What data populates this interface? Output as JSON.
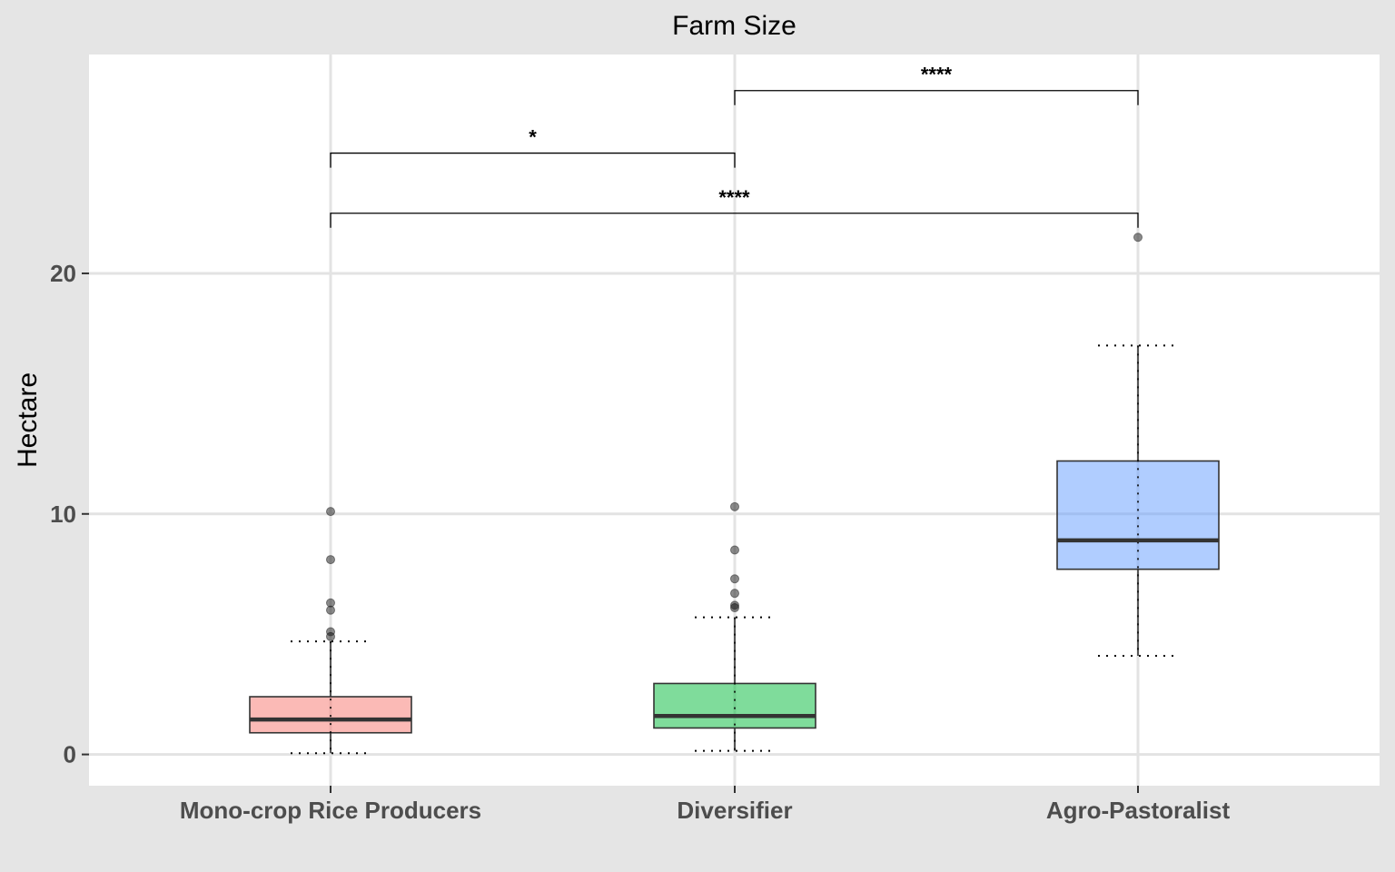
{
  "chart_data": {
    "type": "boxplot",
    "title": "Farm Size",
    "ylabel": "Hectare",
    "xlabel": "",
    "ylim": [
      -1.3,
      29.1
    ],
    "yticks": [
      0,
      10,
      20
    ],
    "categories": [
      "Mono-crop Rice Producers",
      "Diversifier",
      "Agro-Pastoralist"
    ],
    "boxes": [
      {
        "category": "Mono-crop Rice Producers",
        "min": 0.05,
        "q1": 0.9,
        "median": 1.45,
        "q3": 2.4,
        "max": 4.7,
        "outliers": [
          4.9,
          5.1,
          6.0,
          6.3,
          8.1,
          10.1
        ],
        "color": "#f8766d"
      },
      {
        "category": "Diversifier",
        "min": 0.15,
        "q1": 1.1,
        "median": 1.6,
        "q3": 2.95,
        "max": 5.7,
        "outliers": [
          6.1,
          6.2,
          6.7,
          7.3,
          8.5,
          10.3
        ],
        "color": "#00ba38"
      },
      {
        "category": "Agro-Pastoralist",
        "min": 4.1,
        "q1": 7.7,
        "median": 8.9,
        "q3": 12.2,
        "max": 17.0,
        "outliers": [
          21.5
        ],
        "color": "#619cff"
      }
    ],
    "comparisons": [
      {
        "from": "Mono-crop Rice Producers",
        "to": "Diversifier",
        "y": 25.0,
        "label": "*"
      },
      {
        "from": "Diversifier",
        "to": "Agro-Pastoralist",
        "y": 27.6,
        "label": "****"
      },
      {
        "from": "Mono-crop Rice Producers",
        "to": "Agro-Pastoralist",
        "y": 22.5,
        "label": "****"
      }
    ],
    "panel_background": "#ffffff",
    "plot_background": "#e5e5e5",
    "grid": true
  }
}
